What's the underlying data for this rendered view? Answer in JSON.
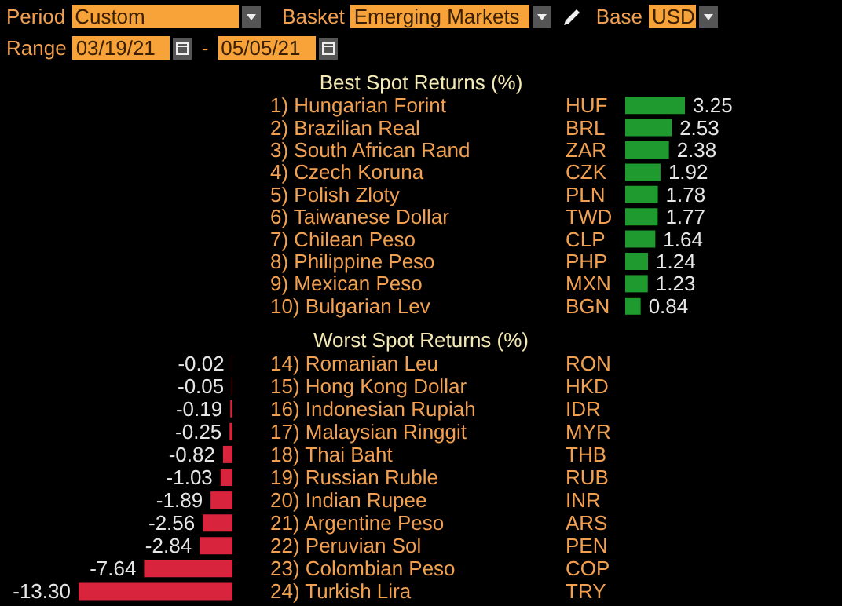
{
  "chart_data": [
    {
      "type": "bar",
      "orientation": "horizontal",
      "title": "Best Spot Returns (%)",
      "annotations": [
        "Period",
        "Custom",
        "Basket",
        "Emerging Markets",
        "Base",
        "USD",
        "Range",
        "03/19/21",
        "-",
        "05/05/21"
      ],
      "categories": [
        "1) Hungarian Forint",
        "2) Brazilian Real",
        "3) South African Rand",
        "4) Czech Koruna",
        "5) Polish Zloty",
        "6) Taiwanese Dollar",
        "7) Chilean Peso",
        "8) Philippine Peso",
        "9) Mexican Peso",
        "10) Bulgarian Lev"
      ],
      "y2_categories": [
        "HUF",
        "BRL",
        "ZAR",
        "CZK",
        "PLN",
        "TWD",
        "CLP",
        "PHP",
        "MXN",
        "BGN"
      ],
      "values": [
        3.25,
        2.53,
        2.38,
        1.92,
        1.78,
        1.77,
        1.64,
        1.24,
        1.23,
        0.84
      ],
      "value_labels": [
        "3.25",
        "2.53",
        "2.38",
        "1.92",
        "1.78",
        "1.77",
        "1.64",
        "1.24",
        "1.23",
        "0.84"
      ],
      "color": "#1e9a2e"
    },
    {
      "type": "bar",
      "orientation": "horizontal",
      "title": "Worst Spot Returns (%)",
      "categories": [
        "14) Romanian Leu",
        "15) Hong Kong Dollar",
        "16) Indonesian Rupiah",
        "17) Malaysian Ringgit",
        "18) Thai Baht",
        "19) Russian Ruble",
        "20) Indian Rupee",
        "21) Argentine Peso",
        "22) Peruvian Sol",
        "23) Colombian Peso",
        "24) Turkish Lira"
      ],
      "y2_categories": [
        "RON",
        "HKD",
        "IDR",
        "MYR",
        "THB",
        "RUB",
        "INR",
        "ARS",
        "PEN",
        "COP",
        "TRY"
      ],
      "values": [
        -0.02,
        -0.05,
        -0.19,
        -0.25,
        -0.82,
        -1.03,
        -1.89,
        -2.56,
        -2.84,
        -7.64,
        -13.3
      ],
      "value_labels": [
        "-0.02",
        "-0.05",
        "-0.19",
        "-0.25",
        "-0.82",
        "-1.03",
        "-1.89",
        "-2.56",
        "-2.84",
        "-7.64",
        "-13.30"
      ],
      "color": "#d8243c"
    }
  ]
}
